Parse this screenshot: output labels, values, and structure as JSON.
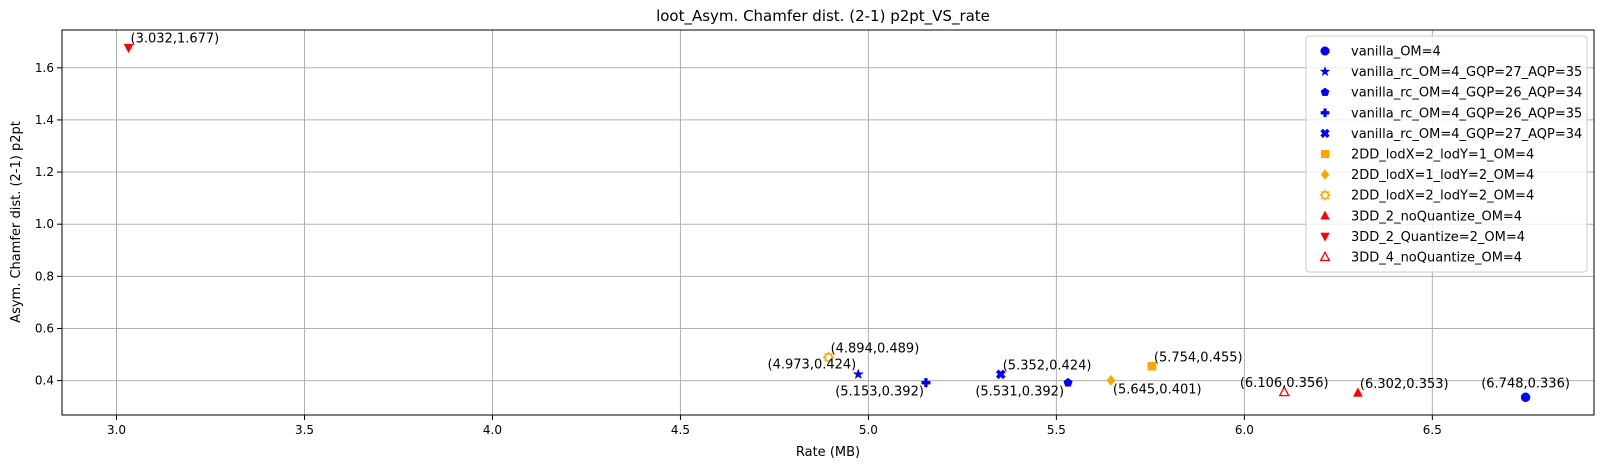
{
  "chart_data": {
    "type": "scatter",
    "title": "loot_Asym. Chamfer dist. (2-1) p2pt_VS_rate",
    "xlabel": "Rate (MB)",
    "ylabel": "Asym. Chamfer dist. (2-1) p2pt",
    "xlim": [
      2.855,
      6.93
    ],
    "ylim": [
      0.268,
      1.745
    ],
    "xticks": [
      "3.0",
      "3.5",
      "4.0",
      "4.5",
      "5.0",
      "5.5",
      "6.0",
      "6.5"
    ],
    "xtick_values": [
      3.0,
      3.5,
      4.0,
      4.5,
      5.0,
      5.5,
      6.0,
      6.5
    ],
    "yticks": [
      "0.4",
      "0.6",
      "0.8",
      "1.0",
      "1.2",
      "1.4",
      "1.6"
    ],
    "ytick_values": [
      0.4,
      0.6,
      0.8,
      1.0,
      1.2,
      1.4,
      1.6
    ],
    "grid": true,
    "legend_position": "top-right",
    "series": [
      {
        "name": "vanilla_OM=4",
        "marker": "circle",
        "color": "#0000ff",
        "filled": true,
        "x": 6.748,
        "y": 0.336,
        "label": "(6.748,0.336)"
      },
      {
        "name": "vanilla_rc_OM=4_GQP=27_AQP=35",
        "marker": "star",
        "color": "#0000ff",
        "filled": true,
        "x": 4.973,
        "y": 0.424,
        "label": "(4.973,0.424)"
      },
      {
        "name": "vanilla_rc_OM=4_GQP=26_AQP=34",
        "marker": "pentagon",
        "color": "#0000ff",
        "filled": true,
        "x": 5.531,
        "y": 0.392,
        "label": "(5.531,0.392)"
      },
      {
        "name": "vanilla_rc_OM=4_GQP=26_AQP=35",
        "marker": "plus",
        "color": "#0000ff",
        "filled": true,
        "x": 5.153,
        "y": 0.392,
        "label": "(5.153,0.392)"
      },
      {
        "name": "vanilla_rc_OM=4_GQP=27_AQP=34",
        "marker": "x",
        "color": "#0000ff",
        "filled": true,
        "x": 5.352,
        "y": 0.424,
        "label": "(5.352,0.424)"
      },
      {
        "name": "2DD_lodX=2_lodY=1_OM=4",
        "marker": "square",
        "color": "#ffa500",
        "filled": true,
        "x": 5.754,
        "y": 0.455,
        "label": "(5.754,0.455)"
      },
      {
        "name": "2DD_lodX=1_lodY=2_OM=4",
        "marker": "diamond",
        "color": "#ffa500",
        "filled": true,
        "x": 5.645,
        "y": 0.401,
        "label": "(5.645,0.401)"
      },
      {
        "name": "2DD_lodX=2_lodY=2_OM=4",
        "marker": "sun",
        "color": "#ffa500",
        "filled": false,
        "x": 4.894,
        "y": 0.489,
        "label": "(4.894,0.489)"
      },
      {
        "name": "3DD_2_noQuantize_OM=4",
        "marker": "triangle-up",
        "color": "#ff0000",
        "filled": true,
        "x": 6.302,
        "y": 0.353,
        "label": "(6.302,0.353)"
      },
      {
        "name": "3DD_2_Quantize=2_OM=4",
        "marker": "triangle-down",
        "color": "#ff0000",
        "filled": true,
        "x": 3.032,
        "y": 1.677,
        "label": "(3.032,1.677)"
      },
      {
        "name": "3DD_4_noQuantize_OM=4",
        "marker": "triangle-up",
        "color": "#ff0000",
        "filled": false,
        "x": 6.106,
        "y": 0.356,
        "label": "(6.106,0.356)"
      }
    ]
  }
}
